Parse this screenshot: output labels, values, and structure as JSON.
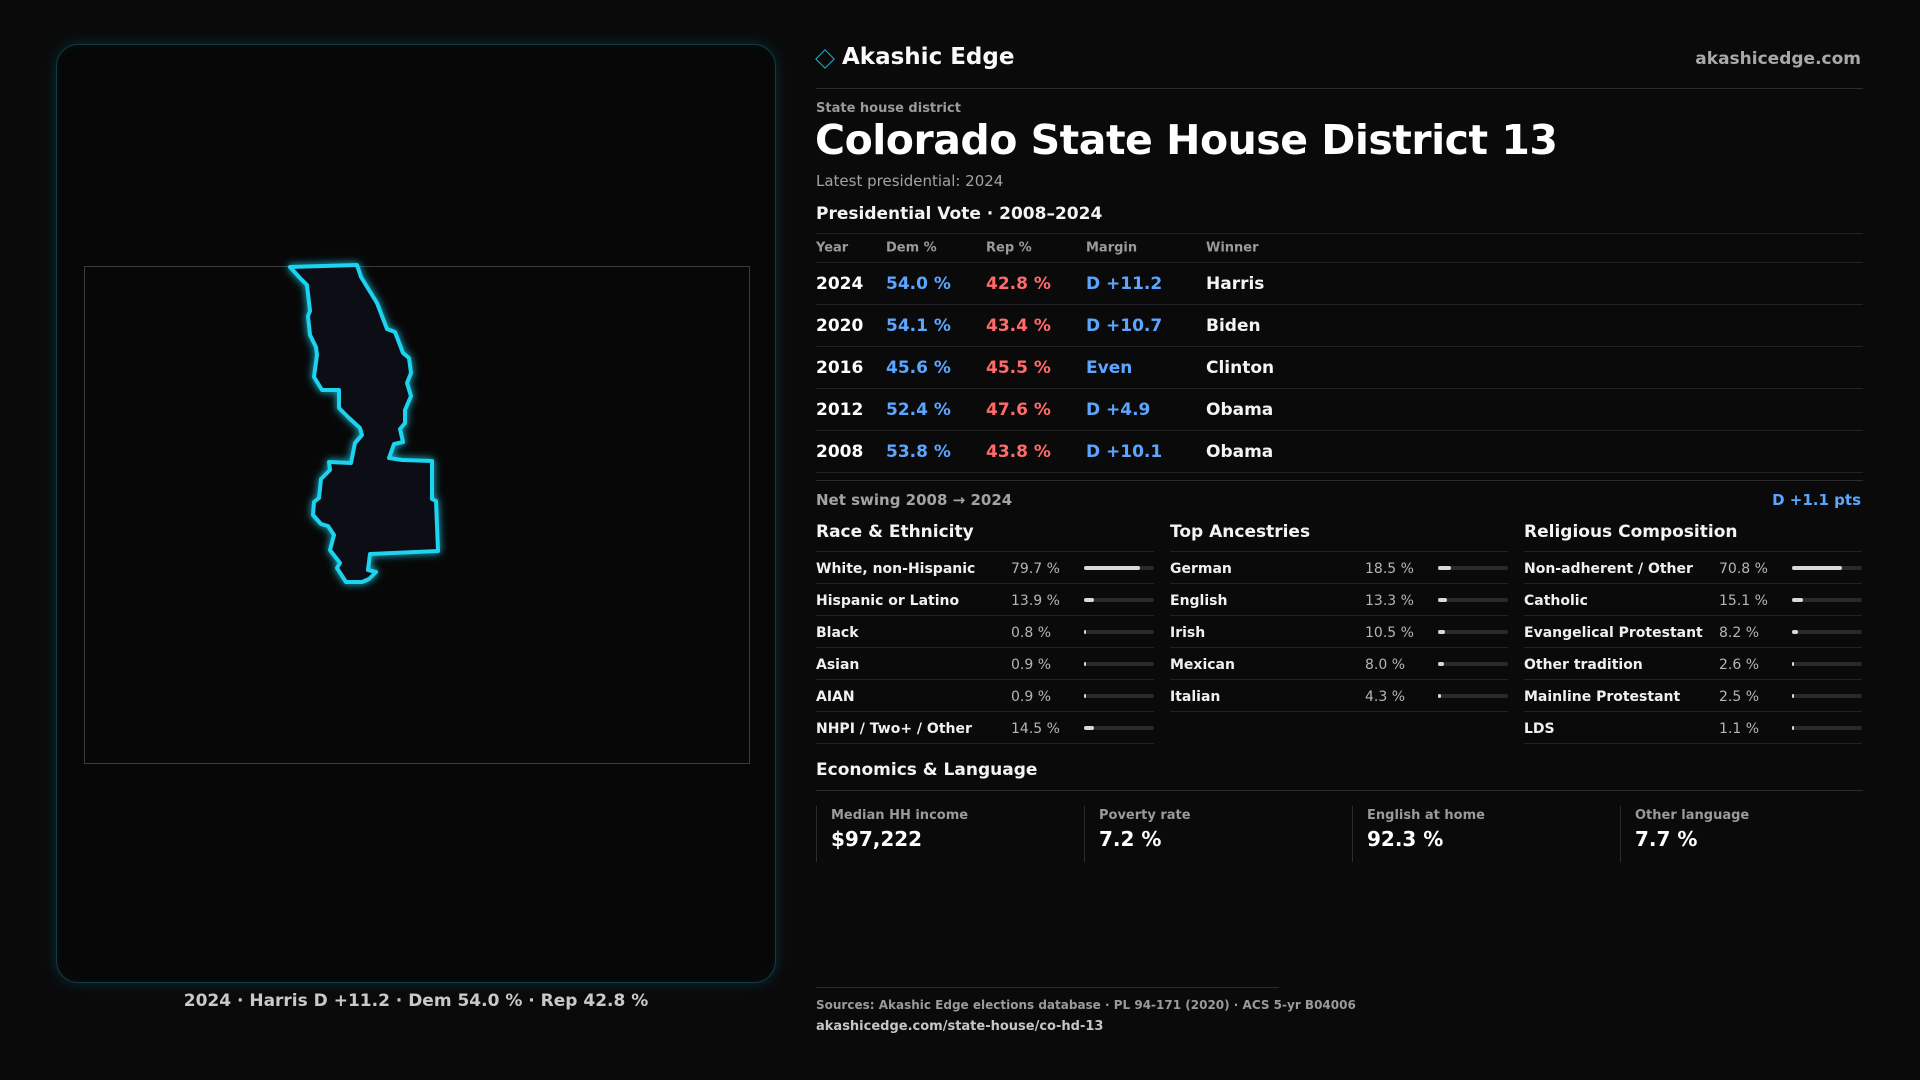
{
  "map": {
    "caption": "2024 · Harris D +11.2 · Dem 54.0 % · Rep 42.8 %",
    "outline_color": "#1fd3f0"
  },
  "header": {
    "brand": "Akashic Edge",
    "url": "akashicedge.com",
    "icon": "diamond-icon"
  },
  "district": {
    "kicker": "State house district",
    "title": "Colorado State House District 13",
    "latest": "Latest presidential: 2024"
  },
  "presidential": {
    "section_title": "Presidential Vote · 2008–2024",
    "columns": [
      "Year",
      "Dem %",
      "Rep %",
      "Margin",
      "Winner"
    ],
    "rows": [
      {
        "year": "2024",
        "dem": "54.0 %",
        "rep": "42.8 %",
        "margin": "D +11.2",
        "winner": "Harris"
      },
      {
        "year": "2020",
        "dem": "54.1 %",
        "rep": "43.4 %",
        "margin": "D +10.7",
        "winner": "Biden"
      },
      {
        "year": "2016",
        "dem": "45.6 %",
        "rep": "45.5 %",
        "margin": "Even",
        "winner": "Clinton"
      },
      {
        "year": "2012",
        "dem": "52.4 %",
        "rep": "47.6 %",
        "margin": "D +4.9",
        "winner": "Obama"
      },
      {
        "year": "2008",
        "dem": "53.8 %",
        "rep": "43.8 %",
        "margin": "D +10.1",
        "winner": "Obama"
      }
    ],
    "swing_label": "Net swing 2008 → 2024",
    "swing_value": "D +1.1 pts"
  },
  "demographics": [
    {
      "title": "Race & Ethnicity",
      "items": [
        {
          "label": "White, non-Hispanic",
          "pct": "79.7 %",
          "value": 79.7
        },
        {
          "label": "Hispanic or Latino",
          "pct": "13.9 %",
          "value": 13.9
        },
        {
          "label": "Black",
          "pct": "0.8 %",
          "value": 0.8
        },
        {
          "label": "Asian",
          "pct": "0.9 %",
          "value": 0.9
        },
        {
          "label": "AIAN",
          "pct": "0.9 %",
          "value": 0.9
        },
        {
          "label": "NHPI / Two+ / Other",
          "pct": "14.5 %",
          "value": 14.5
        }
      ]
    },
    {
      "title": "Top Ancestries",
      "items": [
        {
          "label": "German",
          "pct": "18.5 %",
          "value": 18.5
        },
        {
          "label": "English",
          "pct": "13.3 %",
          "value": 13.3
        },
        {
          "label": "Irish",
          "pct": "10.5 %",
          "value": 10.5
        },
        {
          "label": "Mexican",
          "pct": "8.0 %",
          "value": 8.0
        },
        {
          "label": "Italian",
          "pct": "4.3 %",
          "value": 4.3
        }
      ]
    },
    {
      "title": "Religious Composition",
      "items": [
        {
          "label": "Non-adherent / Other",
          "pct": "70.8 %",
          "value": 70.8
        },
        {
          "label": "Catholic",
          "pct": "15.1 %",
          "value": 15.1
        },
        {
          "label": "Evangelical Protestant",
          "pct": "8.2 %",
          "value": 8.2
        },
        {
          "label": "Other tradition",
          "pct": "2.6 %",
          "value": 2.6
        },
        {
          "label": "Mainline Protestant",
          "pct": "2.5 %",
          "value": 2.5
        },
        {
          "label": "LDS",
          "pct": "1.1 %",
          "value": 1.1
        }
      ]
    }
  ],
  "economics": {
    "title": "Economics & Language",
    "cells": [
      {
        "label": "Median HH income",
        "value": "$97,222"
      },
      {
        "label": "Poverty rate",
        "value": "7.2 %"
      },
      {
        "label": "English at home",
        "value": "92.3 %"
      },
      {
        "label": "Other language",
        "value": "7.7 %"
      }
    ]
  },
  "sources": {
    "line": "Sources: Akashic Edge elections database · PL 94-171 (2020) · ACS 5-yr B04006",
    "url": "akashicedge.com/state-house/co-hd-13"
  },
  "colors": {
    "dem": "#5da6ff",
    "rep": "#ff6b6b",
    "accent": "#1fb7d3"
  }
}
